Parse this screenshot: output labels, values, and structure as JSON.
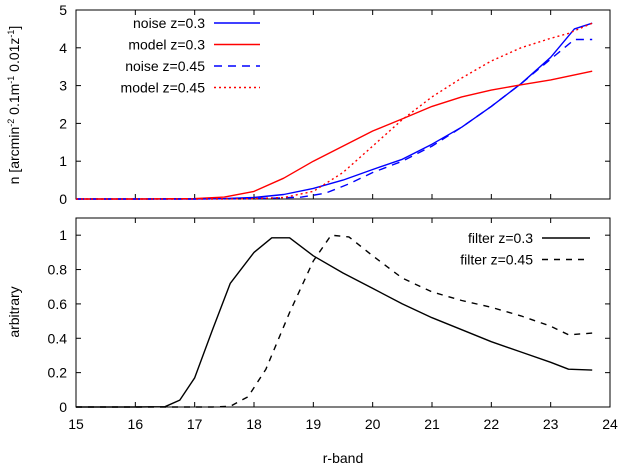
{
  "chart_data": [
    {
      "type": "line",
      "ylabel": {
        "parts": [
          {
            "t": "n [arcmin",
            "sup": false
          },
          {
            "t": "-2",
            "sup": true
          },
          {
            "t": " 0.1m",
            "sup": false
          },
          {
            "t": "-1",
            "sup": true
          },
          {
            "t": " 0.01z",
            "sup": false
          },
          {
            "t": "-1",
            "sup": true
          },
          {
            "t": "]",
            "sup": false
          }
        ]
      },
      "xlim": [
        15,
        24
      ],
      "ylim": [
        0,
        5
      ],
      "yticks": [
        "0",
        "1",
        "2",
        "3",
        "4",
        "5"
      ],
      "legend_position": "top-left",
      "series": [
        {
          "name": "noise z=0.3",
          "color": "#0000ff",
          "dash": "solid",
          "points": [
            [
              15,
              0
            ],
            [
              16,
              0
            ],
            [
              17,
              0
            ],
            [
              17.5,
              0.01
            ],
            [
              18,
              0.04
            ],
            [
              18.5,
              0.12
            ],
            [
              19,
              0.28
            ],
            [
              19.5,
              0.5
            ],
            [
              20,
              0.78
            ],
            [
              20.5,
              1.05
            ],
            [
              21,
              1.45
            ],
            [
              21.5,
              1.9
            ],
            [
              22,
              2.45
            ],
            [
              22.5,
              3.05
            ],
            [
              23,
              3.75
            ],
            [
              23.4,
              4.5
            ],
            [
              23.7,
              4.65
            ]
          ]
        },
        {
          "name": "model z=0.3",
          "color": "#ff0000",
          "dash": "solid",
          "points": [
            [
              15,
              0
            ],
            [
              16,
              0
            ],
            [
              17,
              0.01
            ],
            [
              17.5,
              0.05
            ],
            [
              18,
              0.2
            ],
            [
              18.5,
              0.55
            ],
            [
              19,
              1.0
            ],
            [
              19.5,
              1.4
            ],
            [
              20,
              1.8
            ],
            [
              20.5,
              2.12
            ],
            [
              21,
              2.45
            ],
            [
              21.5,
              2.7
            ],
            [
              22,
              2.88
            ],
            [
              22.5,
              3.02
            ],
            [
              23,
              3.15
            ],
            [
              23.7,
              3.38
            ]
          ]
        },
        {
          "name": "noise z=0.45",
          "color": "#0000ff",
          "dash": "8,6",
          "points": [
            [
              15,
              0
            ],
            [
              17,
              0
            ],
            [
              17.8,
              0.01
            ],
            [
              18.3,
              0.02
            ],
            [
              18.8,
              0.05
            ],
            [
              19.2,
              0.15
            ],
            [
              19.6,
              0.4
            ],
            [
              20,
              0.7
            ],
            [
              20.5,
              1.0
            ],
            [
              21,
              1.4
            ],
            [
              21.5,
              1.9
            ],
            [
              22,
              2.45
            ],
            [
              22.5,
              3.05
            ],
            [
              23,
              3.7
            ],
            [
              23.4,
              4.22
            ],
            [
              23.7,
              4.22
            ]
          ]
        },
        {
          "name": "model z=0.45",
          "color": "#ff0000",
          "dash": "2,3",
          "points": [
            [
              15,
              0
            ],
            [
              17.5,
              0
            ],
            [
              18,
              0.01
            ],
            [
              18.5,
              0.04
            ],
            [
              19,
              0.2
            ],
            [
              19.5,
              0.7
            ],
            [
              20,
              1.4
            ],
            [
              20.5,
              2.1
            ],
            [
              21,
              2.7
            ],
            [
              21.5,
              3.2
            ],
            [
              22,
              3.65
            ],
            [
              22.5,
              4.0
            ],
            [
              23,
              4.25
            ],
            [
              23.3,
              4.38
            ],
            [
              23.7,
              4.65
            ]
          ]
        }
      ]
    },
    {
      "type": "line",
      "xlabel": "r-band",
      "ylabel": {
        "parts": [
          {
            "t": "arbitrary",
            "sup": false
          }
        ]
      },
      "xlim": [
        15,
        24
      ],
      "ylim": [
        0,
        1.1
      ],
      "xticks": [
        "15",
        "16",
        "17",
        "18",
        "19",
        "20",
        "21",
        "22",
        "23",
        "24"
      ],
      "yticks": [
        "0",
        "0.2",
        "0.4",
        "0.6",
        "0.8",
        "1"
      ],
      "legend_position": "top-right",
      "series": [
        {
          "name": "filter z=0.3",
          "color": "#000000",
          "dash": "solid",
          "points": [
            [
              15,
              0
            ],
            [
              16,
              0
            ],
            [
              16.5,
              0.002
            ],
            [
              16.75,
              0.04
            ],
            [
              17,
              0.17
            ],
            [
              17.3,
              0.45
            ],
            [
              17.6,
              0.72
            ],
            [
              18,
              0.9
            ],
            [
              18.3,
              0.985
            ],
            [
              18.6,
              0.985
            ],
            [
              19,
              0.88
            ],
            [
              19.5,
              0.78
            ],
            [
              20,
              0.69
            ],
            [
              20.5,
              0.6
            ],
            [
              21,
              0.52
            ],
            [
              21.5,
              0.45
            ],
            [
              22,
              0.38
            ],
            [
              22.5,
              0.32
            ],
            [
              23,
              0.26
            ],
            [
              23.3,
              0.22
            ],
            [
              23.7,
              0.215
            ]
          ]
        },
        {
          "name": "filter z=0.45",
          "color": "#000000",
          "dash": "6,6",
          "points": [
            [
              15,
              0
            ],
            [
              17.3,
              0
            ],
            [
              17.6,
              0.004
            ],
            [
              17.9,
              0.06
            ],
            [
              18.2,
              0.22
            ],
            [
              18.6,
              0.55
            ],
            [
              19,
              0.85
            ],
            [
              19.3,
              1.0
            ],
            [
              19.6,
              0.99
            ],
            [
              20,
              0.88
            ],
            [
              20.5,
              0.75
            ],
            [
              21,
              0.67
            ],
            [
              21.5,
              0.62
            ],
            [
              22,
              0.58
            ],
            [
              22.5,
              0.53
            ],
            [
              23,
              0.47
            ],
            [
              23.3,
              0.42
            ],
            [
              23.7,
              0.43
            ]
          ]
        }
      ]
    }
  ]
}
